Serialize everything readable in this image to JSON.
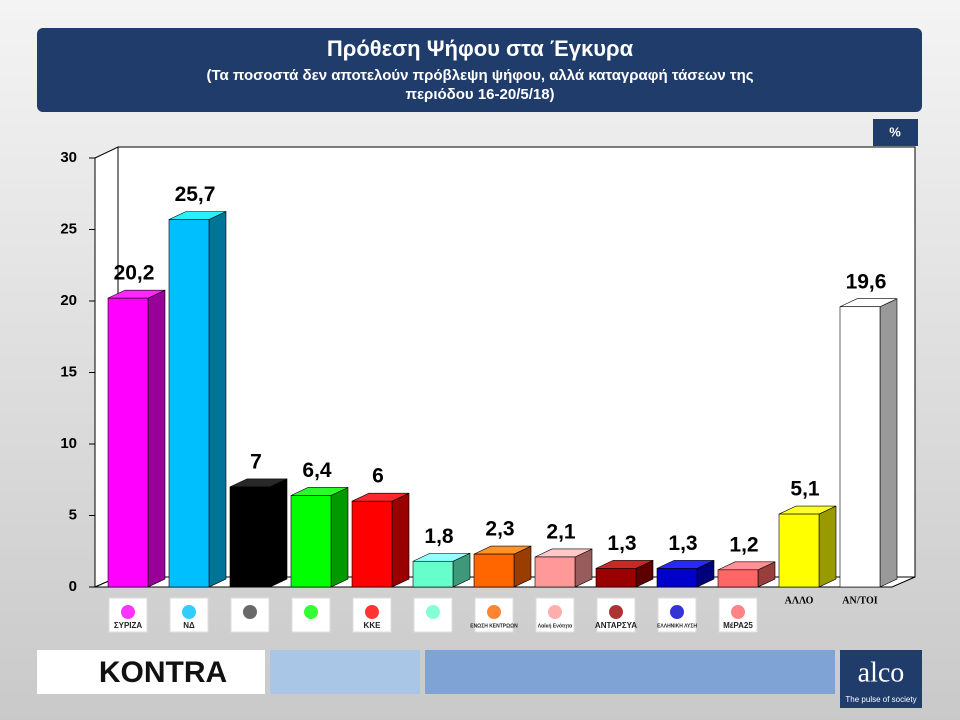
{
  "chart_data": {
    "type": "bar3d",
    "title": "Πρόθεση Ψήφου στα Έγκυρα",
    "subtitle": [
      "(Τα ποσοστά δεν αποτελούν πρόβλεψη ψήφου, αλλά καταγραφή τάσεων  της",
      "περιόδου 16-20/5/18)"
    ],
    "unit": "%",
    "categories": [
      "ΣΥΡΙΖΑ",
      "ΝΔ",
      null,
      null,
      "ΚΚΕ",
      null,
      "ΕΝΩΣΗ ΚΕΝΤΡΩΩΝ",
      "Λαϊκή Ενότητα",
      "ΑΝΤΑΡΣΥΑ",
      "ΕΛΛΗΝΙΚΗ ΛΥΣΗ",
      "ΜέΡΑ25",
      "ΑΛΛΟ",
      "ΑΝ/ΤΟΙ"
    ],
    "values": [
      20.2,
      25.7,
      7,
      6.4,
      6,
      1.8,
      2.3,
      2.1,
      1.3,
      1.3,
      1.2,
      5.1,
      19.6
    ],
    "value_labels": [
      "20,2",
      "25,7",
      "7",
      "6,4",
      "6",
      "1,8",
      "2,3",
      "2,1",
      "1,3",
      "1,3",
      "1,2",
      "5,1",
      "19,6"
    ],
    "colors": [
      "#ff00ff",
      "#00bfff",
      "#000000",
      "#00ff00",
      "#ff0000",
      "#66ffcc",
      "#ff6600",
      "#ff9999",
      "#990000",
      "#0000cc",
      "#ff6666",
      "#ffff00",
      "#ffffff"
    ],
    "ylim": [
      0,
      30
    ],
    "yticks": [
      0,
      5,
      10,
      15,
      20,
      25,
      30
    ],
    "grid": false
  },
  "footer": {
    "left_logo": "KONTRA",
    "right_logo": "alco",
    "tagline": "The pulse of society"
  }
}
